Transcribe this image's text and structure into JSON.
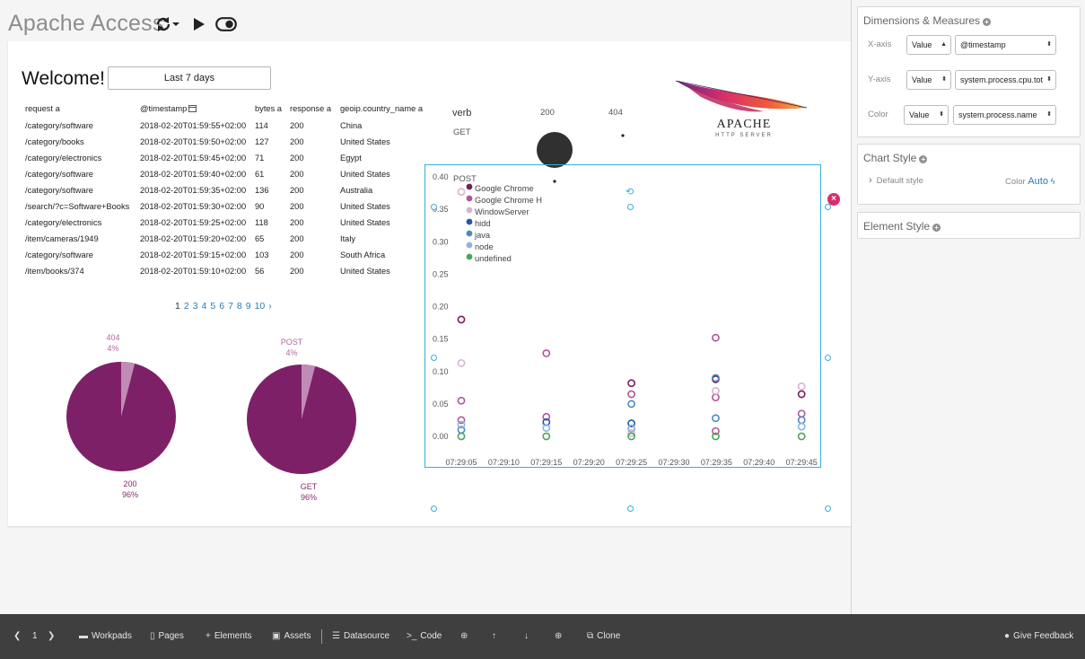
{
  "header": {
    "title": "Apache Access"
  },
  "page": {
    "welcome": "Welcome!",
    "time_filter": "Last 7 days",
    "table": {
      "columns": [
        "request a",
        "@timestamp",
        "bytes a",
        "response a",
        "geoip.country_name a"
      ],
      "rows": [
        [
          "/category/software",
          "2018-02-20T01:59:55+02:00",
          "114",
          "200",
          "China"
        ],
        [
          "/category/books",
          "2018-02-20T01:59:50+02:00",
          "127",
          "200",
          "United States"
        ],
        [
          "/category/electronics",
          "2018-02-20T01:59:45+02:00",
          "71",
          "200",
          "Egypt"
        ],
        [
          "/category/software",
          "2018-02-20T01:59:40+02:00",
          "61",
          "200",
          "United States"
        ],
        [
          "/category/software",
          "2018-02-20T01:59:35+02:00",
          "136",
          "200",
          "Australia"
        ],
        [
          "/search/?c=Software+Books",
          "2018-02-20T01:59:30+02:00",
          "90",
          "200",
          "United States"
        ],
        [
          "/category/electronics",
          "2018-02-20T01:59:25+02:00",
          "118",
          "200",
          "United States"
        ],
        [
          "/item/cameras/1949",
          "2018-02-20T01:59:20+02:00",
          "65",
          "200",
          "Italy"
        ],
        [
          "/category/software",
          "2018-02-20T01:59:15+02:00",
          "103",
          "200",
          "South Africa"
        ],
        [
          "/item/books/374",
          "2018-02-20T01:59:10+02:00",
          "56",
          "200",
          "United States"
        ]
      ]
    },
    "pager": {
      "pages": [
        "1",
        "2",
        "3",
        "4",
        "5",
        "6",
        "7",
        "8",
        "9",
        "10"
      ],
      "next": "›"
    },
    "pie_response": {
      "small_label": "404",
      "small_pct": "4%",
      "big_label": "200",
      "big_pct": "96%",
      "values": [
        96,
        4
      ]
    },
    "pie_verb": {
      "small_label": "POST",
      "small_pct": "4%",
      "big_label": "GET",
      "big_pct": "96%",
      "values": [
        96,
        4
      ]
    },
    "verb_grid": {
      "header": "verb",
      "columns": [
        "200",
        "404"
      ],
      "rows": [
        "GET",
        "POST"
      ]
    },
    "logo": {
      "text": "APACHE",
      "subtext": "HTTP SERVER"
    }
  },
  "chart_data": {
    "type": "scatter",
    "x_ticks": [
      "07:29:05",
      "07:29:10",
      "07:29:15",
      "07:29:20",
      "07:29:25",
      "07:29:30",
      "07:29:35",
      "07:29:40",
      "07:29:45"
    ],
    "y_ticks": [
      "0.40",
      "0.35",
      "0.30",
      "0.25",
      "0.20",
      "0.15",
      "0.10",
      "0.05",
      "0.00"
    ],
    "ylim": [
      0,
      0.4
    ],
    "series": [
      {
        "name": "Google Chrome",
        "color": "#7a1d5c",
        "points": [
          [
            0,
            0.18
          ],
          [
            4,
            0.082
          ],
          [
            5.98,
            0.088
          ],
          [
            8,
            0.065
          ]
        ]
      },
      {
        "name": "Google Chrome H",
        "color": "#b2559b",
        "points": [
          [
            0,
            0.055
          ],
          [
            0,
            0.025
          ],
          [
            2,
            0.128
          ],
          [
            2,
            0.03
          ],
          [
            4,
            0.065
          ],
          [
            4,
            0.012
          ],
          [
            5.98,
            0.152
          ],
          [
            5.98,
            0.06
          ],
          [
            5.98,
            0.008
          ],
          [
            8,
            0.035
          ]
        ]
      },
      {
        "name": "WindowServer",
        "color": "#d8b3d2",
        "points": [
          [
            0,
            0.377
          ],
          [
            0,
            0.113
          ],
          [
            4,
            0.005
          ],
          [
            5.98,
            0.07
          ],
          [
            8,
            0.077
          ]
        ]
      },
      {
        "name": "hidd",
        "color": "#2359a6",
        "points": [
          [
            2,
            0.022
          ],
          [
            4,
            0.02
          ]
        ]
      },
      {
        "name": "java",
        "color": "#4a8ac4",
        "points": [
          [
            0,
            0.01
          ],
          [
            4,
            0.05
          ],
          [
            5.98,
            0.09
          ],
          [
            5.98,
            0.028
          ],
          [
            8,
            0.025
          ]
        ]
      },
      {
        "name": "node",
        "color": "#8fb3dc",
        "points": [
          [
            0,
            0.018
          ],
          [
            2,
            0.013
          ],
          [
            4,
            0.012
          ],
          [
            8,
            0.015
          ]
        ]
      },
      {
        "name": "undefined",
        "color": "#4fa25a",
        "points": [
          [
            0,
            0
          ],
          [
            2,
            0
          ],
          [
            4,
            0
          ],
          [
            5.98,
            0
          ],
          [
            8,
            0
          ]
        ]
      }
    ]
  },
  "sidebar": {
    "dimensions": {
      "title": "Dimensions & Measures",
      "rows": [
        {
          "label": "X-axis",
          "type": "Value",
          "field": "@timestamp"
        },
        {
          "label": "Y-axis",
          "type": "Value",
          "field": "system.process.cpu.tot"
        },
        {
          "label": "Color",
          "type": "Value",
          "field": "system.process.name"
        }
      ]
    },
    "chart_style": {
      "title": "Chart Style",
      "default": "Default style",
      "color_label": "Color",
      "color_value": "Auto"
    },
    "element_style": {
      "title": "Element Style"
    }
  },
  "footer": {
    "page_number": "1",
    "workpads": "Workpads",
    "pages": "Pages",
    "elements": "Elements",
    "assets": "Assets",
    "datasource": "Datasource",
    "code": "Code",
    "clone": "Clone",
    "feedback": "Give Feedback"
  }
}
